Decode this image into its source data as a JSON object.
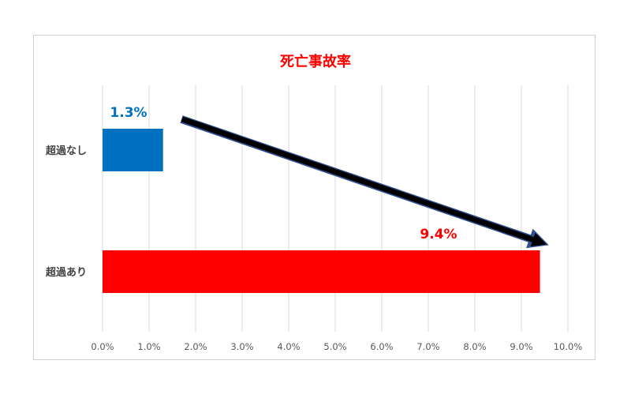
{
  "chart_data": {
    "type": "bar",
    "orientation": "horizontal",
    "title": "死亡事故率",
    "categories": [
      "超過なし",
      "超過あり"
    ],
    "values": [
      1.3,
      9.4
    ],
    "data_labels": [
      "1.3%",
      "9.4%"
    ],
    "bar_colors": [
      "#0070C0",
      "#FF0000"
    ],
    "label_colors": [
      "#0070C0",
      "#FF0000"
    ],
    "title_color": "#FF0000",
    "xlim": [
      0,
      10
    ],
    "x_ticks": [
      "0.0%",
      "1.0%",
      "2.0%",
      "3.0%",
      "4.0%",
      "5.0%",
      "6.0%",
      "7.0%",
      "8.0%",
      "9.0%",
      "10.0%"
    ],
    "grid": true,
    "legend": "none",
    "annotation": {
      "type": "arrow",
      "from_category": "超過なし",
      "to_category": "超過あり",
      "color": "#000000"
    }
  }
}
